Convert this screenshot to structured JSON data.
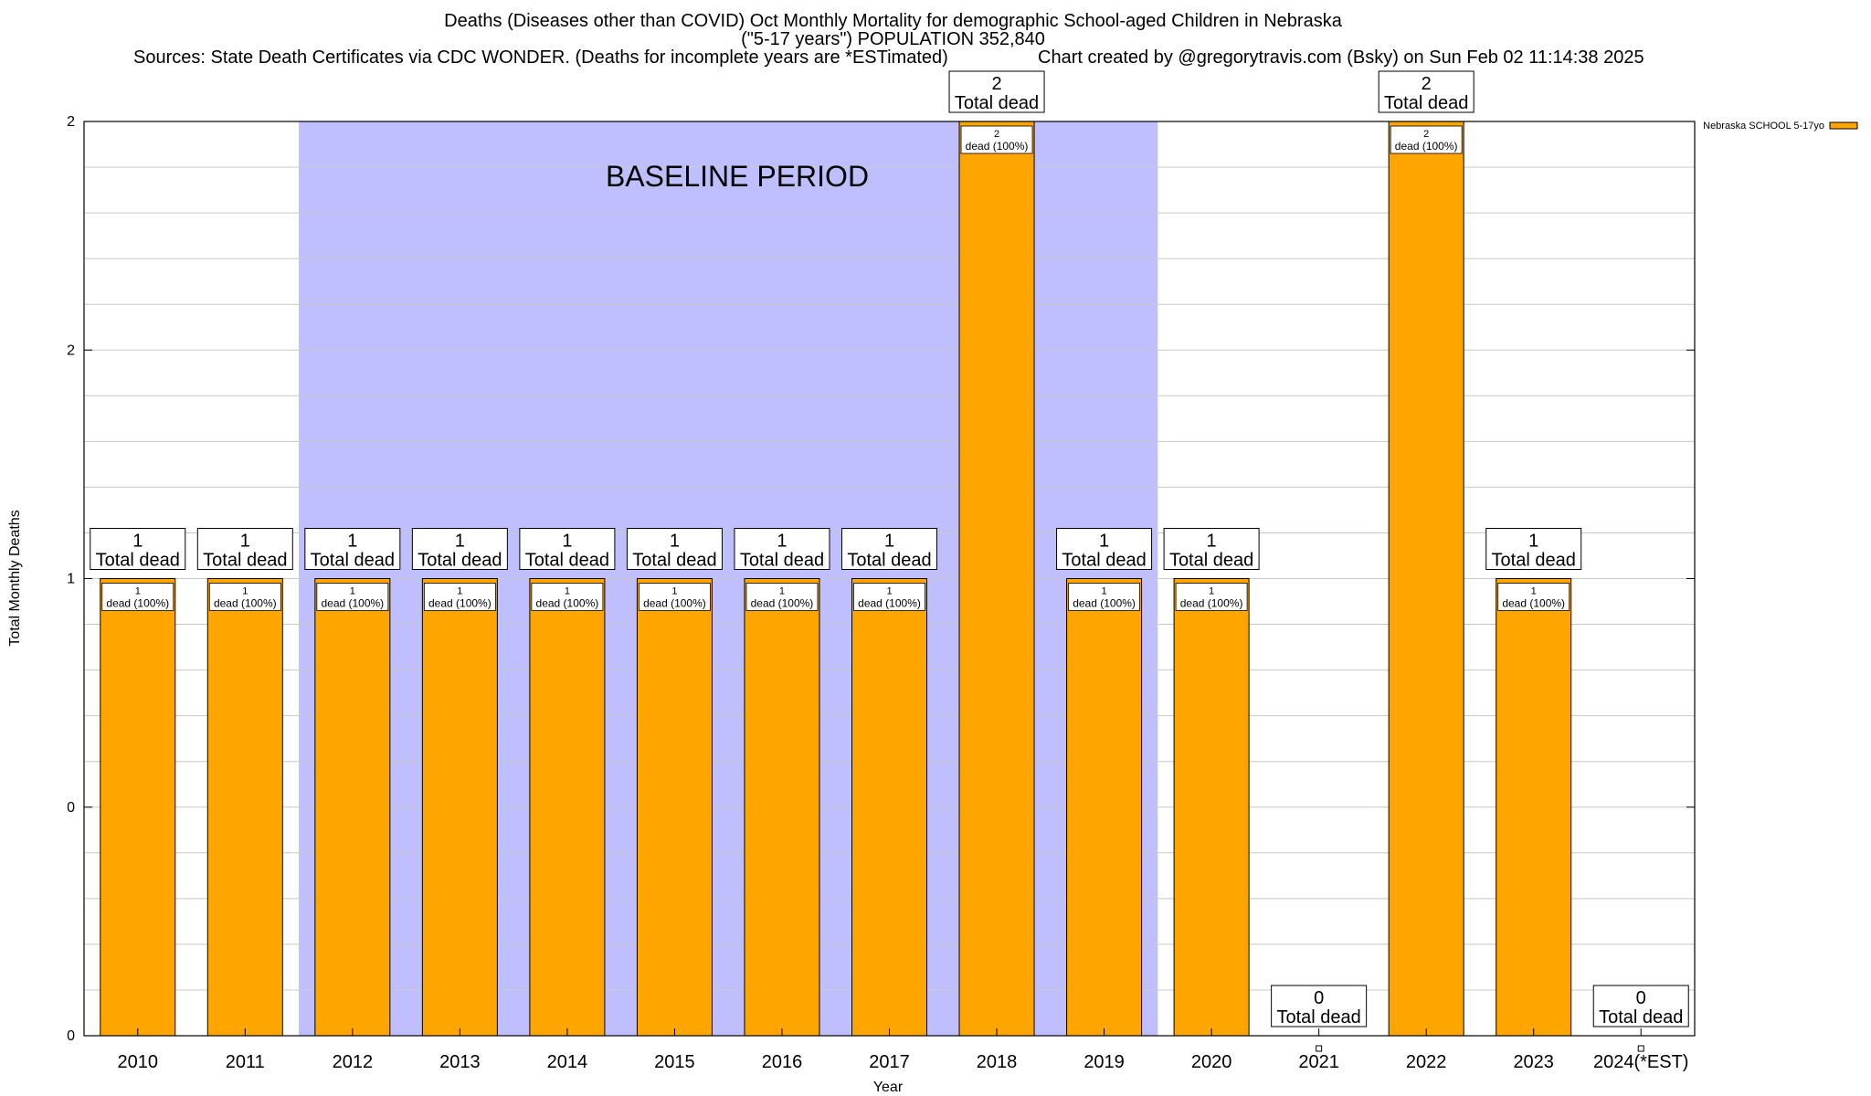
{
  "header": {
    "title_line1": "Deaths (Diseases other than COVID) Oct Monthly Mortality for demographic School-aged Children in Nebraska",
    "title_line2": "(\"5-17 years\") POPULATION 352,840",
    "sources": "Sources: State Death Certificates via CDC WONDER. (Deaths for incomplete years are *ESTimated)",
    "credit": "Chart created by @gregorytravis.com (Bsky) on Sun Feb 02 11:14:38 2025"
  },
  "chart_data": {
    "type": "bar",
    "xlabel": "Year",
    "ylabel": "Total Monthly Deaths",
    "ylim": [
      0,
      2
    ],
    "y_tick_labels": [
      "0",
      "0",
      "1",
      "2",
      "2"
    ],
    "grid": true,
    "legend_position": "top-right",
    "categories": [
      "2010",
      "2011",
      "2012",
      "2013",
      "2014",
      "2015",
      "2016",
      "2017",
      "2018",
      "2019",
      "2020",
      "2021",
      "2022",
      "2023",
      "2024(*EST)"
    ],
    "series": [
      {
        "name": "Nebraska SCHOOL 5-17yo",
        "color": "#ffa500",
        "values": [
          1,
          1,
          1,
          1,
          1,
          1,
          1,
          1,
          2,
          1,
          1,
          0,
          2,
          1,
          0
        ]
      }
    ],
    "total_label_suffix": "Total dead",
    "segment_label_suffix": "dead (100%)",
    "baseline": {
      "label": "BASELINE PERIOD",
      "start": "2012",
      "end": "2019",
      "color": "#bfbfff"
    }
  }
}
